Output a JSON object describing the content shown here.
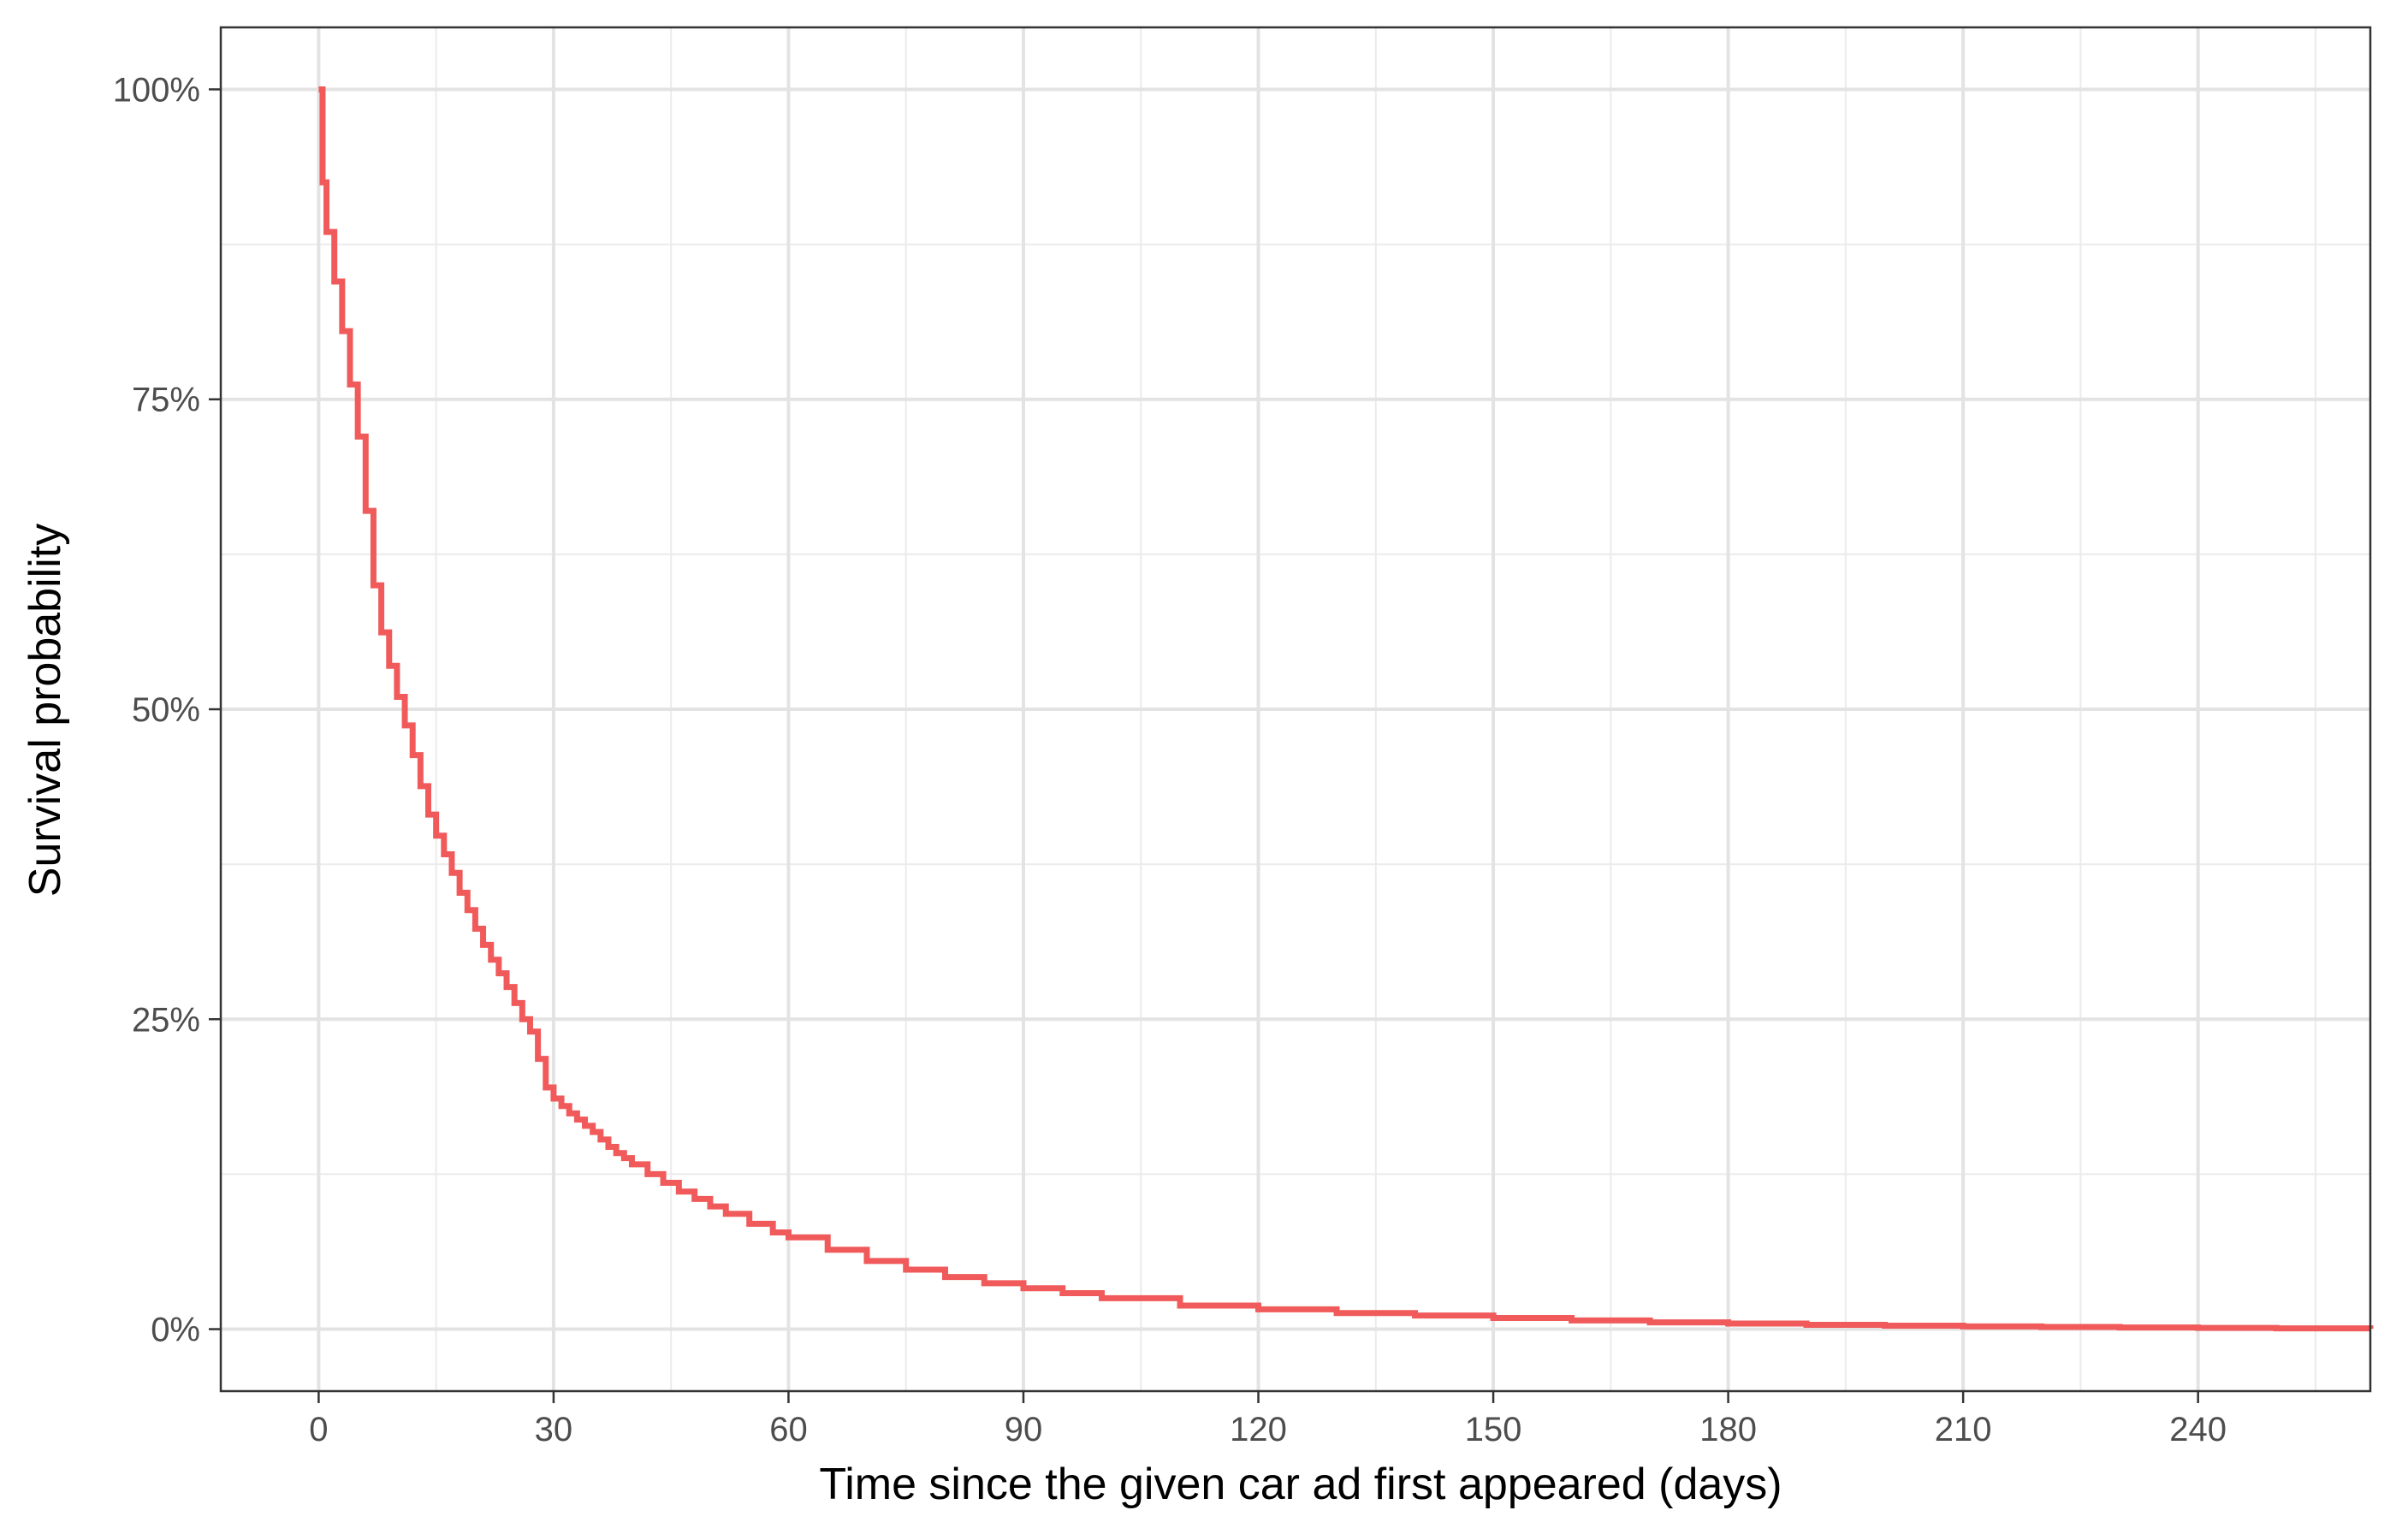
{
  "chart_data": {
    "type": "line",
    "step": true,
    "xlabel": "Time since the given car ad first appeared (days)",
    "ylabel": "Survival probability",
    "xlim": [
      -12.5,
      262
    ],
    "ylim": [
      -0.05,
      1.05
    ],
    "x_ticks": [
      0,
      30,
      60,
      90,
      120,
      150,
      180,
      210,
      240
    ],
    "x_tick_labels": [
      "0",
      "30",
      "60",
      "90",
      "120",
      "150",
      "180",
      "210",
      "240"
    ],
    "x_minor_ticks": [
      15,
      45,
      75,
      105,
      135,
      165,
      195,
      225,
      255
    ],
    "y_ticks": [
      0,
      0.25,
      0.5,
      0.75,
      1.0
    ],
    "y_tick_labels": [
      "0%",
      "25%",
      "50%",
      "75%",
      "100%"
    ],
    "y_minor_ticks": [
      0.125,
      0.375,
      0.625,
      0.875
    ],
    "grid": true,
    "legend": "none",
    "series": [
      {
        "color": "#f05a5a",
        "x": [
          0,
          0.5,
          1,
          2,
          3,
          4,
          5,
          6,
          7,
          8,
          9,
          10,
          11,
          12,
          13,
          14,
          15,
          16,
          17,
          18,
          19,
          20,
          21,
          22,
          23,
          24,
          25,
          26,
          27,
          28,
          29,
          30,
          31,
          32,
          33,
          34,
          35,
          36,
          37,
          38,
          39,
          40,
          42,
          44,
          46,
          48,
          50,
          52,
          55,
          58,
          60,
          65,
          70,
          75,
          80,
          85,
          90,
          95,
          100,
          110,
          120,
          130,
          140,
          150,
          160,
          170,
          180,
          190,
          200,
          210,
          220,
          230,
          240,
          250,
          262
        ],
        "y": [
          1.0,
          0.925,
          0.885,
          0.845,
          0.805,
          0.762,
          0.72,
          0.66,
          0.6,
          0.562,
          0.535,
          0.51,
          0.487,
          0.463,
          0.438,
          0.415,
          0.398,
          0.383,
          0.368,
          0.352,
          0.338,
          0.323,
          0.31,
          0.298,
          0.287,
          0.276,
          0.263,
          0.25,
          0.24,
          0.218,
          0.195,
          0.186,
          0.18,
          0.174,
          0.169,
          0.164,
          0.159,
          0.153,
          0.147,
          0.142,
          0.138,
          0.133,
          0.125,
          0.118,
          0.111,
          0.105,
          0.099,
          0.093,
          0.085,
          0.078,
          0.074,
          0.064,
          0.055,
          0.048,
          0.042,
          0.037,
          0.033,
          0.029,
          0.025,
          0.019,
          0.016,
          0.013,
          0.011,
          0.009,
          0.007,
          0.0055,
          0.0045,
          0.0035,
          0.0028,
          0.0022,
          0.0018,
          0.0013,
          0.001,
          0.0006,
          0.0003
        ]
      }
    ]
  }
}
